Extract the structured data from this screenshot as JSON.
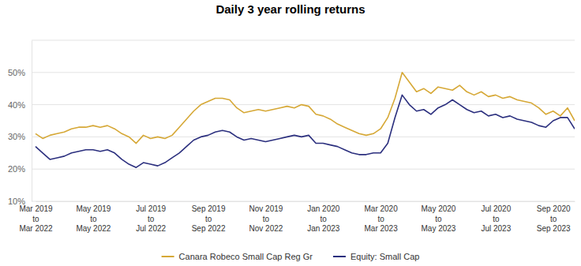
{
  "chart_data": {
    "type": "line",
    "title": "Daily 3 year rolling returns",
    "categories": [
      "Mar 2019\nto\nMar 2022",
      null,
      null,
      null,
      null,
      null,
      null,
      null,
      "May 2019\nto\nMay 2022",
      null,
      null,
      null,
      null,
      null,
      null,
      null,
      "Jul 2019\nto\nJul 2022",
      null,
      null,
      null,
      null,
      null,
      null,
      null,
      "Sep 2019\nto\nSep 2022",
      null,
      null,
      null,
      null,
      null,
      null,
      null,
      "Nov 2019\nto\nNov 2022",
      null,
      null,
      null,
      null,
      null,
      null,
      null,
      "Jan 2020\nto\nJan 2023",
      null,
      null,
      null,
      null,
      null,
      null,
      null,
      "Mar 2020\nto\nMar 2023",
      null,
      null,
      null,
      null,
      null,
      null,
      null,
      "May 2020\nto\nMay 2023",
      null,
      null,
      null,
      null,
      null,
      null,
      null,
      "Jul 2020\nto\nJul 2023",
      null,
      null,
      null,
      null,
      null,
      null,
      null,
      "Sep 2020\nto\nSep 2023",
      null,
      null,
      null
    ],
    "series": [
      {
        "name": "Canara Robeco Small Cap Reg Gr",
        "color": "#d6a836",
        "values": [
          31,
          29.5,
          30.5,
          31,
          31.5,
          32.5,
          33,
          33,
          33.5,
          33,
          33.5,
          32.5,
          31,
          30,
          28,
          30.5,
          29.5,
          30,
          29.5,
          30.5,
          33,
          35.5,
          38,
          40,
          41,
          42,
          42,
          41.5,
          39,
          37.5,
          38,
          38.5,
          38,
          38.5,
          39,
          39.5,
          39,
          40,
          39.5,
          37,
          36.5,
          35.5,
          34,
          33,
          32,
          31,
          30.5,
          31,
          32.5,
          36,
          42,
          50,
          47,
          44,
          45,
          43.5,
          45.5,
          45,
          44.5,
          46,
          44,
          43,
          44,
          42.5,
          43,
          42,
          42.5,
          41.5,
          41,
          40.5,
          39,
          37,
          38,
          36.5,
          39,
          35
        ]
      },
      {
        "name": "Equity: Small Cap",
        "color": "#2b2f7e",
        "values": [
          27,
          25,
          23,
          23.5,
          24,
          25,
          25.5,
          26,
          26,
          25.5,
          26,
          25,
          23,
          21.5,
          20.5,
          22,
          21.5,
          21,
          22,
          23.5,
          25,
          27,
          29,
          30,
          30.5,
          31.5,
          32,
          31.5,
          30,
          29,
          29.5,
          29,
          28.5,
          29,
          29.5,
          30,
          30.5,
          30,
          30.5,
          28,
          28,
          27.5,
          27,
          26,
          25,
          24.5,
          24.5,
          25,
          25,
          28,
          36,
          43,
          40,
          38,
          38.5,
          37,
          39,
          40,
          41.5,
          40,
          38.5,
          37.5,
          38,
          36.5,
          37,
          36,
          36.5,
          35.5,
          35,
          34.5,
          33.5,
          33,
          35,
          36,
          36,
          32.5
        ]
      }
    ],
    "ylim": [
      10,
      60
    ],
    "yticks": [
      {
        "value": 10,
        "label": "10%"
      },
      {
        "value": 20,
        "label": "20%"
      },
      {
        "value": 30,
        "label": "30%"
      },
      {
        "value": 40,
        "label": "40%"
      },
      {
        "value": 50,
        "label": "50%"
      }
    ],
    "grid": true,
    "legend": "bottom"
  }
}
